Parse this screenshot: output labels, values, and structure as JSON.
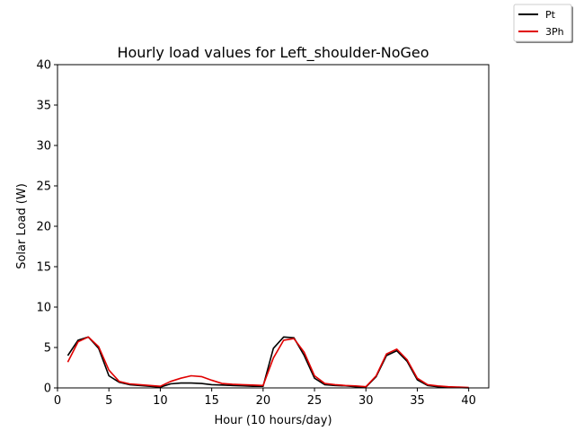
{
  "chart_data": {
    "type": "line",
    "title": "Hourly load values for Left_shoulder-NoGeo",
    "xlabel": "Hour (10 hours/day)",
    "ylabel": "Solar Load (W)",
    "xlim": [
      0,
      41.95
    ],
    "ylim": [
      0,
      40
    ],
    "xticks": [
      0,
      5,
      10,
      15,
      20,
      25,
      30,
      35,
      40
    ],
    "yticks": [
      0,
      5,
      10,
      15,
      20,
      25,
      30,
      35,
      40
    ],
    "grid": false,
    "legend_position": "top-right, outside plot",
    "series": [
      {
        "name": "Pt",
        "color": "#000000",
        "x": [
          1,
          2,
          3,
          4,
          5,
          6,
          7,
          8,
          9,
          10,
          11,
          12,
          13,
          14,
          15,
          16,
          17,
          18,
          19,
          20,
          21,
          22,
          23,
          24,
          25,
          26,
          27,
          28,
          29,
          30,
          31,
          32,
          33,
          34,
          35,
          36,
          37,
          38,
          39,
          40
        ],
        "y": [
          4.0,
          5.9,
          6.3,
          4.9,
          1.5,
          0.7,
          0.4,
          0.3,
          0.2,
          0.1,
          0.5,
          0.6,
          0.6,
          0.55,
          0.4,
          0.35,
          0.3,
          0.25,
          0.2,
          0.2,
          4.9,
          6.3,
          6.2,
          4.0,
          1.2,
          0.4,
          0.3,
          0.25,
          0.15,
          0.1,
          1.4,
          4.0,
          4.6,
          3.3,
          1.0,
          0.3,
          0.15,
          0.1,
          0.05,
          0.0
        ]
      },
      {
        "name": "3Ph",
        "color": "#e00000",
        "x": [
          1,
          2,
          3,
          4,
          5,
          6,
          7,
          8,
          9,
          10,
          11,
          12,
          13,
          14,
          15,
          16,
          17,
          18,
          19,
          20,
          21,
          22,
          23,
          24,
          25,
          26,
          27,
          28,
          29,
          30,
          31,
          32,
          33,
          34,
          35,
          36,
          37,
          38,
          39,
          40
        ],
        "y": [
          3.2,
          5.7,
          6.3,
          5.1,
          2.2,
          0.8,
          0.5,
          0.4,
          0.3,
          0.2,
          0.8,
          1.2,
          1.5,
          1.4,
          0.95,
          0.55,
          0.45,
          0.4,
          0.35,
          0.3,
          3.7,
          5.9,
          6.1,
          4.4,
          1.5,
          0.55,
          0.4,
          0.3,
          0.25,
          0.15,
          1.5,
          4.2,
          4.8,
          3.5,
          1.2,
          0.4,
          0.25,
          0.15,
          0.1,
          0.05
        ]
      }
    ]
  }
}
